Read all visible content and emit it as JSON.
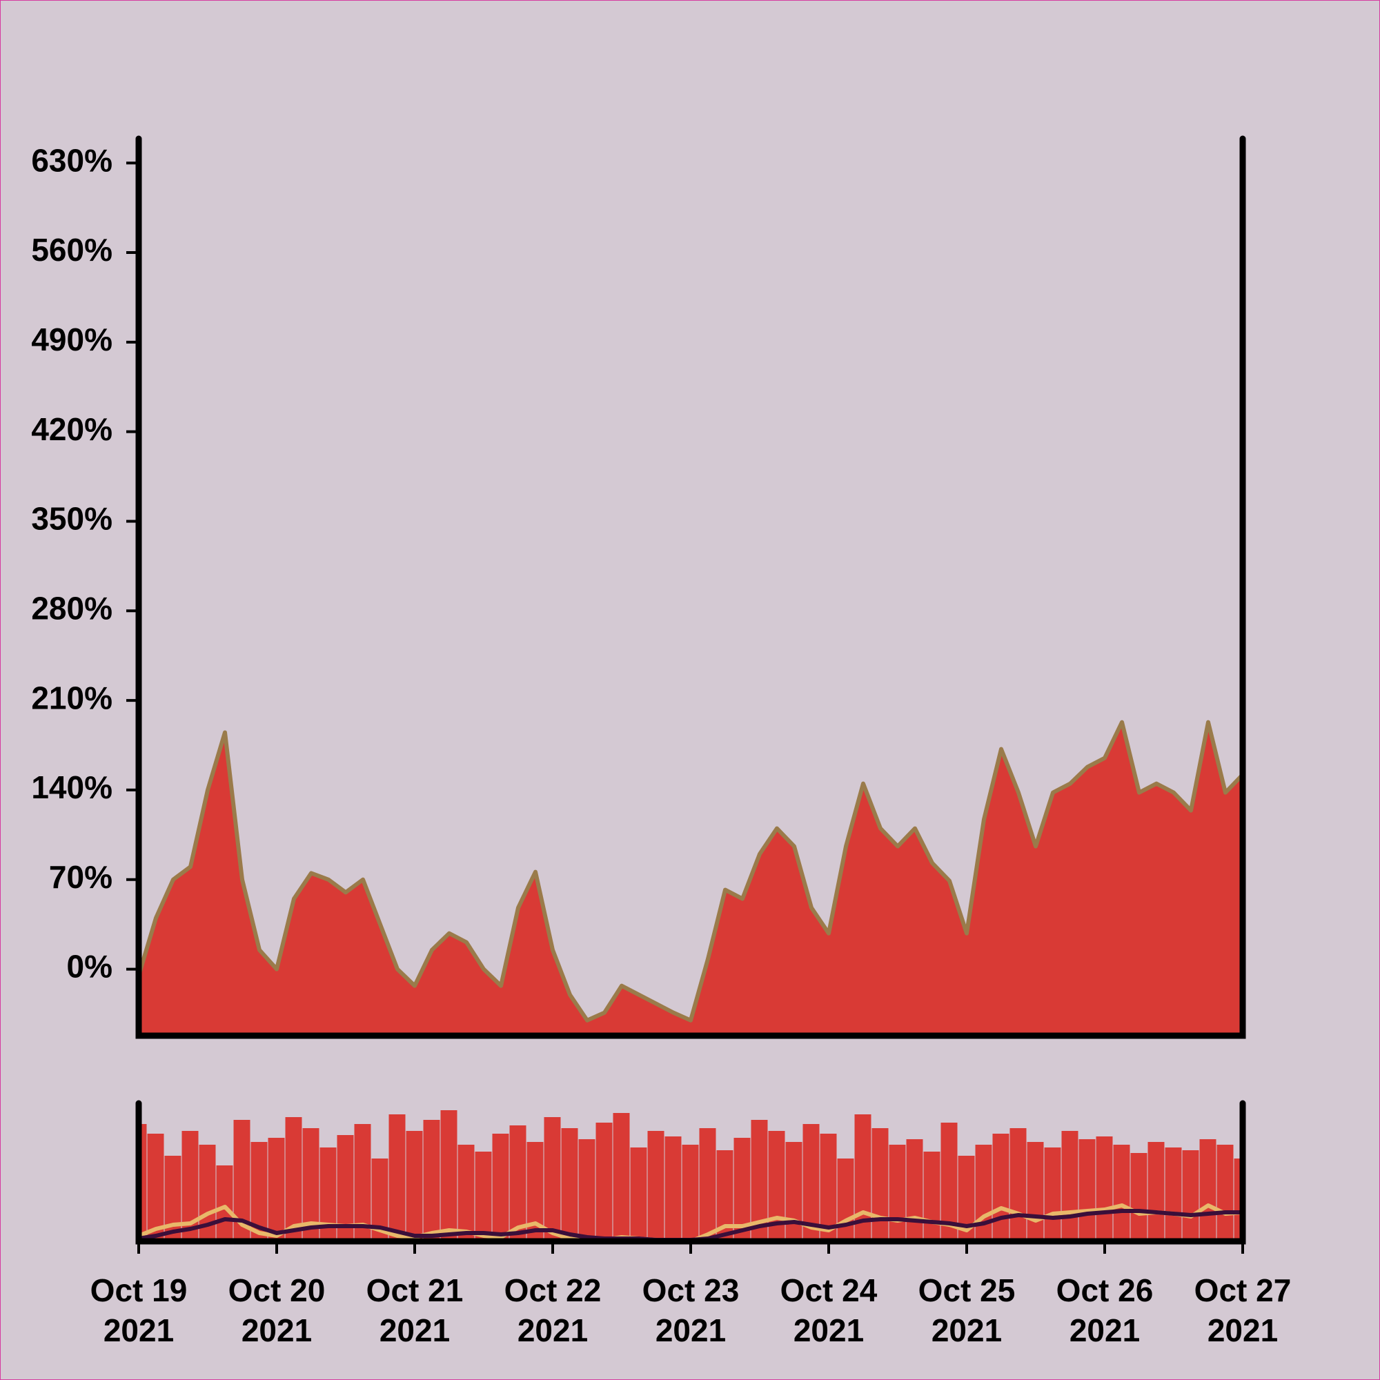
{
  "chart_data": [
    {
      "type": "area",
      "x": [
        "2021-10-19T00:00",
        "2021-10-19T03:00",
        "2021-10-19T06:00",
        "2021-10-19T09:00",
        "2021-10-19T12:00",
        "2021-10-19T15:00",
        "2021-10-19T18:00",
        "2021-10-19T21:00",
        "2021-10-20T00:00",
        "2021-10-20T03:00",
        "2021-10-20T06:00",
        "2021-10-20T09:00",
        "2021-10-20T12:00",
        "2021-10-20T15:00",
        "2021-10-20T18:00",
        "2021-10-20T21:00",
        "2021-10-21T00:00",
        "2021-10-21T03:00",
        "2021-10-21T06:00",
        "2021-10-21T09:00",
        "2021-10-21T12:00",
        "2021-10-21T15:00",
        "2021-10-21T18:00",
        "2021-10-21T21:00",
        "2021-10-22T00:00",
        "2021-10-22T03:00",
        "2021-10-22T06:00",
        "2021-10-22T09:00",
        "2021-10-22T12:00",
        "2021-10-22T15:00",
        "2021-10-22T18:00",
        "2021-10-22T21:00",
        "2021-10-23T00:00",
        "2021-10-23T03:00",
        "2021-10-23T06:00",
        "2021-10-23T09:00",
        "2021-10-23T12:00",
        "2021-10-23T15:00",
        "2021-10-23T18:00",
        "2021-10-23T21:00",
        "2021-10-24T00:00",
        "2021-10-24T03:00",
        "2021-10-24T06:00",
        "2021-10-24T09:00",
        "2021-10-24T12:00",
        "2021-10-24T15:00",
        "2021-10-24T18:00",
        "2021-10-24T21:00",
        "2021-10-25T00:00",
        "2021-10-25T03:00",
        "2021-10-25T06:00",
        "2021-10-25T09:00",
        "2021-10-25T12:00",
        "2021-10-25T15:00",
        "2021-10-25T18:00",
        "2021-10-25T21:00",
        "2021-10-26T00:00",
        "2021-10-26T03:00",
        "2021-10-26T06:00",
        "2021-10-26T09:00",
        "2021-10-26T12:00",
        "2021-10-26T15:00",
        "2021-10-26T18:00",
        "2021-10-26T21:00",
        "2021-10-27T00:00"
      ],
      "values": [
        -5,
        40,
        70,
        80,
        140,
        185,
        70,
        15,
        0,
        55,
        75,
        70,
        60,
        70,
        35,
        0,
        -13,
        15,
        28,
        21,
        0,
        -13,
        48,
        76,
        15,
        -20,
        -40,
        -34,
        -13,
        -20,
        -27,
        -34,
        -40,
        8,
        62,
        55,
        90,
        110,
        96,
        48,
        28,
        96,
        145,
        110,
        96,
        110,
        83,
        69,
        28,
        117,
        172,
        138,
        96,
        138,
        145,
        158,
        165,
        193,
        138,
        145,
        138,
        124,
        193,
        138,
        152
      ],
      "color": "#d93a35",
      "line_color": "#9a7b4a",
      "xlim": [
        "2021-10-19T00:00",
        "2021-10-27T00:00"
      ],
      "ylim": [
        -52,
        649
      ],
      "yticks": [
        {
          "value": 0,
          "label": "0%"
        },
        {
          "value": 70,
          "label": "70%"
        },
        {
          "value": 140,
          "label": "140%"
        },
        {
          "value": 210,
          "label": "210%"
        },
        {
          "value": 280,
          "label": "280%"
        },
        {
          "value": 350,
          "label": "350%"
        },
        {
          "value": 420,
          "label": "420%"
        },
        {
          "value": 490,
          "label": "490%"
        },
        {
          "value": 560,
          "label": "560%"
        },
        {
          "value": 630,
          "label": "630%"
        }
      ]
    },
    {
      "type": "bar",
      "values": [
        85,
        78,
        62,
        80,
        70,
        55,
        88,
        72,
        75,
        90,
        82,
        68,
        77,
        85,
        60,
        92,
        80,
        88,
        95,
        70,
        65,
        78,
        84,
        72,
        90,
        82,
        74,
        86,
        93,
        68,
        80,
        76,
        70,
        82,
        66,
        75,
        88,
        80,
        72,
        85,
        78,
        60,
        92,
        82,
        70,
        74,
        65,
        86,
        62,
        70,
        78,
        82,
        72,
        68,
        80,
        74,
        76,
        70,
        64,
        72,
        68,
        66,
        74,
        70,
        60
      ],
      "color": "#d93a35",
      "ylim": [
        0,
        100
      ],
      "series": [
        {
          "color": "#e8b86a",
          "values": [
            4,
            9,
            12,
            13,
            20,
            25,
            12,
            6,
            4,
            11,
            13,
            12,
            11,
            12,
            8,
            4,
            3,
            6,
            8,
            7,
            4,
            3,
            10,
            13,
            6,
            2,
            0,
            1,
            3,
            2,
            1,
            1,
            0,
            5,
            11,
            11,
            14,
            17,
            15,
            10,
            8,
            15,
            21,
            17,
            15,
            17,
            14,
            12,
            8,
            18,
            24,
            20,
            15,
            20,
            21,
            22,
            23,
            26,
            20,
            21,
            20,
            18,
            26,
            20,
            21
          ]
        },
        {
          "color": "#3a0f3a",
          "values": [
            2,
            4,
            7,
            9,
            12,
            16,
            15,
            10,
            6,
            8,
            10,
            11,
            11,
            11,
            10,
            7,
            4,
            4,
            5,
            6,
            6,
            5,
            6,
            8,
            8,
            5,
            3,
            2,
            2,
            2,
            1,
            1,
            1,
            2,
            5,
            8,
            11,
            13,
            14,
            12,
            10,
            12,
            15,
            16,
            16,
            15,
            14,
            13,
            11,
            13,
            17,
            19,
            18,
            17,
            18,
            20,
            21,
            22,
            22,
            21,
            20,
            19,
            20,
            21,
            21
          ]
        }
      ],
      "xticks": [
        {
          "value": "2021-10-19T00:00",
          "label": "Oct 19 2021"
        },
        {
          "value": "2021-10-20T00:00",
          "label": "Oct 20 2021"
        },
        {
          "value": "2021-10-21T00:00",
          "label": "Oct 21 2021"
        },
        {
          "value": "2021-10-22T00:00",
          "label": "Oct 22 2021"
        },
        {
          "value": "2021-10-23T00:00",
          "label": "Oct 23 2021"
        },
        {
          "value": "2021-10-24T00:00",
          "label": "Oct 24 2021"
        },
        {
          "value": "2021-10-25T00:00",
          "label": "Oct 25 2021"
        },
        {
          "value": "2021-10-26T00:00",
          "label": "Oct 26 2021"
        },
        {
          "value": "2021-10-27T00:00",
          "label": "Oct 27 2021"
        }
      ]
    }
  ]
}
